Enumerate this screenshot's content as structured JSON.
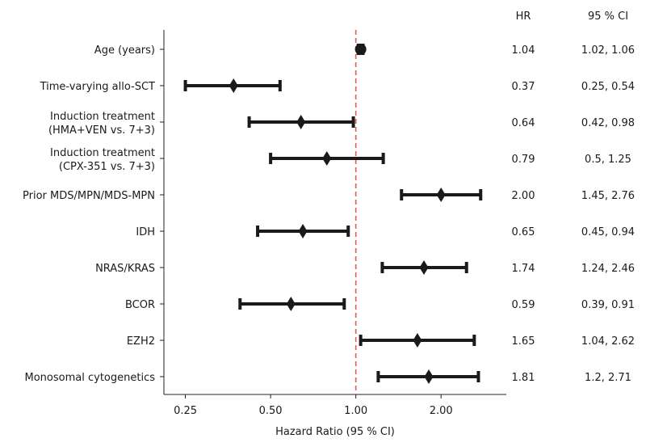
{
  "chart_data": {
    "type": "forest",
    "xlabel": "Hazard Ratio (95 % CI)",
    "x_scale": "log",
    "xlim": [
      0.21,
      3.4
    ],
    "xticks": [
      0.25,
      0.5,
      1.0,
      2.0
    ],
    "xtick_labels": [
      "0.25",
      "0.50",
      "1.00",
      "2.00"
    ],
    "reference_line": 1.0,
    "reference_color": "#e05a5a",
    "columns": {
      "hr_header": "HR",
      "ci_header": "95 % CI"
    },
    "rows": [
      {
        "label_lines": [
          "Age (years)"
        ],
        "hr": 1.04,
        "lo": 1.02,
        "hi": 1.06,
        "hr_text": "1.04",
        "ci_text": "1.02, 1.06",
        "marker": "circle"
      },
      {
        "label_lines": [
          "Time-varying allo-SCT"
        ],
        "hr": 0.37,
        "lo": 0.25,
        "hi": 0.54,
        "hr_text": "0.37",
        "ci_text": "0.25, 0.54",
        "marker": "diamond"
      },
      {
        "label_lines": [
          "Induction treatment",
          "(HMA+VEN vs. 7+3)"
        ],
        "hr": 0.64,
        "lo": 0.42,
        "hi": 0.98,
        "hr_text": "0.64",
        "ci_text": "0.42, 0.98",
        "marker": "diamond"
      },
      {
        "label_lines": [
          "Induction treatment",
          "(CPX-351 vs. 7+3)"
        ],
        "hr": 0.79,
        "lo": 0.5,
        "hi": 1.25,
        "hr_text": "0.79",
        "ci_text": "0.5, 1.25",
        "marker": "diamond"
      },
      {
        "label_lines": [
          "Prior MDS/MPN/MDS-MPN"
        ],
        "hr": 2.0,
        "lo": 1.45,
        "hi": 2.76,
        "hr_text": "2.00",
        "ci_text": "1.45, 2.76",
        "marker": "diamond"
      },
      {
        "label_lines": [
          "IDH"
        ],
        "hr": 0.65,
        "lo": 0.45,
        "hi": 0.94,
        "hr_text": "0.65",
        "ci_text": "0.45, 0.94",
        "marker": "diamond"
      },
      {
        "label_lines": [
          "NRAS/KRAS"
        ],
        "hr": 1.74,
        "lo": 1.24,
        "hi": 2.46,
        "hr_text": "1.74",
        "ci_text": "1.24, 2.46",
        "marker": "diamond"
      },
      {
        "label_lines": [
          "BCOR"
        ],
        "hr": 0.59,
        "lo": 0.39,
        "hi": 0.91,
        "hr_text": "0.59",
        "ci_text": "0.39, 0.91",
        "marker": "diamond"
      },
      {
        "label_lines": [
          "EZH2"
        ],
        "hr": 1.65,
        "lo": 1.04,
        "hi": 2.62,
        "hr_text": "1.65",
        "ci_text": "1.04, 2.62",
        "marker": "diamond"
      },
      {
        "label_lines": [
          "Monosomal cytogenetics"
        ],
        "hr": 1.81,
        "lo": 1.2,
        "hi": 2.71,
        "hr_text": "1.81",
        "ci_text": "1.2, 2.71",
        "marker": "diamond"
      }
    ]
  }
}
